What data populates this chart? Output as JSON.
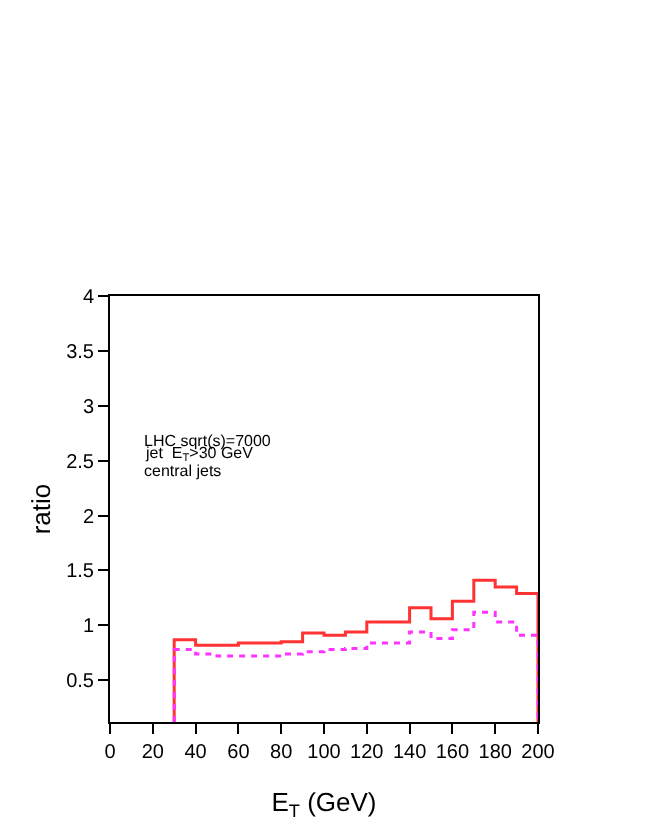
{
  "chart_data": {
    "type": "histogram",
    "xlabel": "E$_{T}$ (GeV)",
    "ylabel": "ratio",
    "bins": [
      30,
      40,
      50,
      60,
      70,
      80,
      90,
      100,
      110,
      120,
      130,
      140,
      150,
      160,
      170,
      180,
      190,
      200
    ],
    "series": [
      {
        "color": "#ff3333",
        "line_style": "solid",
        "values": [
          0.87,
          0.82,
          0.82,
          0.84,
          0.84,
          0.85,
          0.93,
          0.91,
          0.94,
          1.03,
          1.03,
          1.16,
          1.06,
          1.22,
          1.41,
          1.35,
          1.29
        ]
      },
      {
        "color": "#ff33ff",
        "line_style": "dotted",
        "values": [
          0.78,
          0.74,
          0.72,
          0.72,
          0.72,
          0.74,
          0.76,
          0.78,
          0.79,
          0.84,
          0.84,
          0.94,
          0.88,
          0.96,
          1.12,
          1.03,
          0.91
        ]
      }
    ],
    "annotations": [
      "LHC sqrt(s)=7000",
      "jet  E$_{T}$>30 GeV",
      "central jets"
    ],
    "xlim": [
      0,
      200
    ],
    "xticks": [
      0,
      20,
      40,
      60,
      80,
      100,
      120,
      140,
      160,
      180,
      200
    ],
    "ylim": [
      0.12,
      4
    ],
    "yticks": [
      0.5,
      1,
      1.5,
      2,
      2.5,
      3,
      3.5,
      4
    ]
  }
}
